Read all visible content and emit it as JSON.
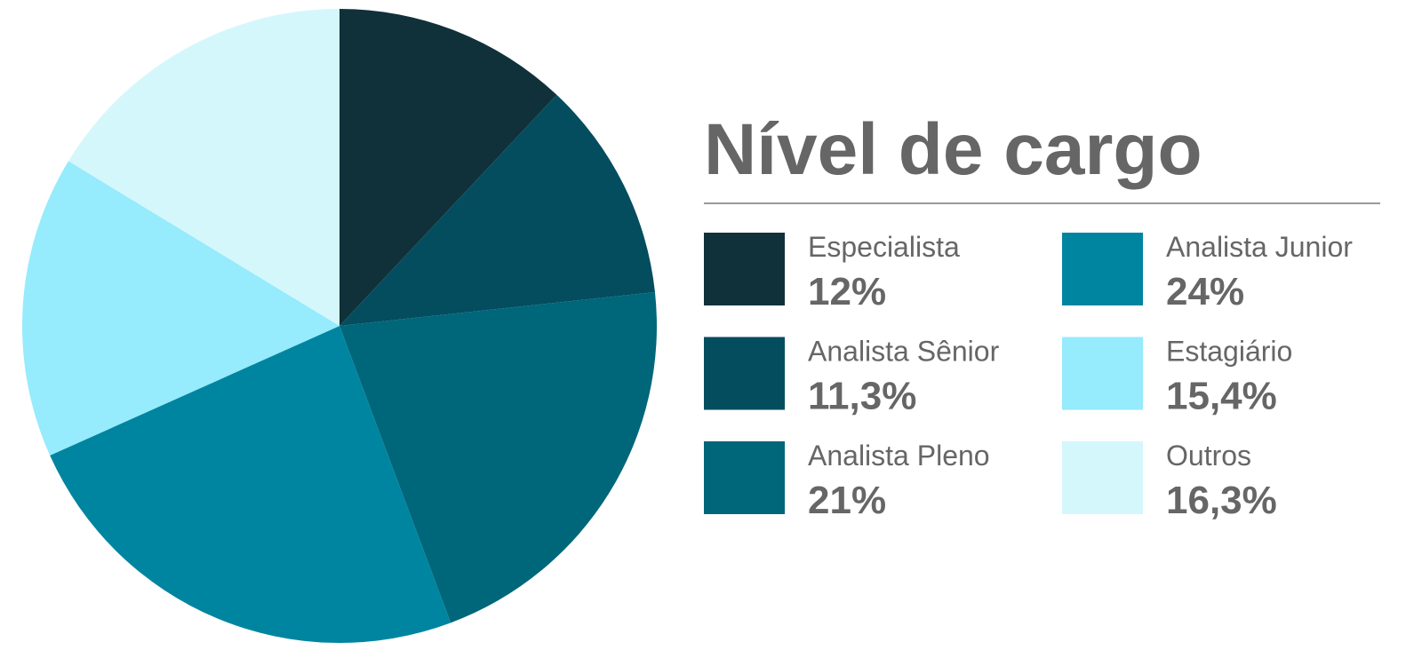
{
  "chart_data": {
    "type": "pie",
    "title": "Nível de cargo",
    "categories": [
      "Especialista",
      "Analista Sênior",
      "Analista Pleno",
      "Analista Junior",
      "Estagiário",
      "Outros"
    ],
    "values": [
      12,
      11.3,
      21,
      24,
      15.4,
      16.3
    ],
    "value_labels": [
      "12%",
      "11,3%",
      "21%",
      "24%",
      "15,4%",
      "16,3%"
    ],
    "colors": [
      "#11313a",
      "#034d5e",
      "#00667a",
      "#0085a0",
      "#96ebfc",
      "#d4f7fc"
    ]
  }
}
